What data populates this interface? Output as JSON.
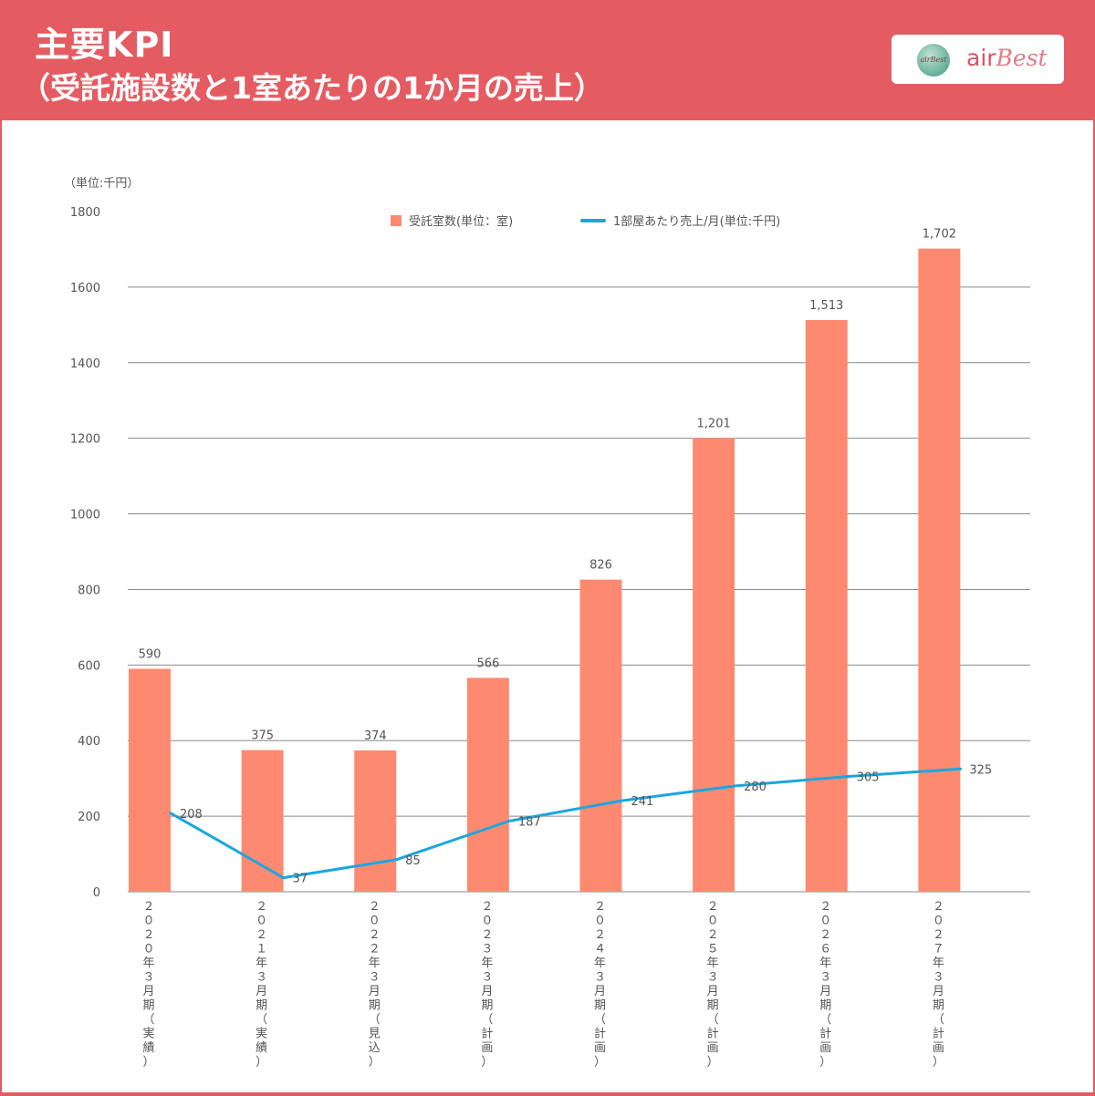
{
  "header": {
    "title": "主要KPI",
    "subtitle": "（受託施設数と1室あたりの1か月の売上）"
  },
  "logo": {
    "globe_text": "airBest",
    "brand_left": "air",
    "brand_right": "Best"
  },
  "colors": {
    "header_bg": "#e45c62",
    "bar": "#fd8a70",
    "line": "#1aa6e0",
    "grid": "#8a8a8a",
    "text": "#555555"
  },
  "chart_data": {
    "type": "bar",
    "unit_label": "（単位:千円）",
    "categories": [
      "２０２０年３月期（実績）",
      "２０２１年３月期（実績）",
      "２０２２年３月期（見込）",
      "２０２３年３月期（計画）",
      "２０２４年３月期（計画）",
      "２０２５年３月期（計画）",
      "２０２６年３月期（計画）",
      "２０２７年３月期（計画）"
    ],
    "series": [
      {
        "name": "受託室数(単位：室)",
        "type": "bar",
        "values": [
          590,
          375,
          374,
          566,
          826,
          1201,
          1513,
          1702
        ],
        "labels": [
          "590",
          "375",
          "374",
          "566",
          "826",
          "1,201",
          "1,513",
          "1,702"
        ]
      },
      {
        "name": "1部屋あたり売上/月(単位:千円)",
        "type": "line",
        "values": [
          208,
          37,
          85,
          187,
          241,
          280,
          305,
          325
        ],
        "labels": [
          "208",
          "37",
          "85",
          "187",
          "241",
          "280",
          "305",
          "325"
        ]
      }
    ],
    "ylim": [
      0,
      1800
    ],
    "yticks": [
      0,
      200,
      400,
      600,
      800,
      1000,
      1200,
      1400,
      1600,
      1800
    ],
    "grid": true,
    "legend_position": "top"
  }
}
